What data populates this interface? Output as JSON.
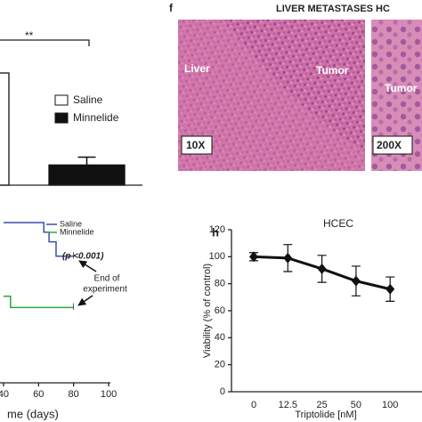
{
  "panel_f": {
    "label": "f",
    "title": "LIVER METASTASES HC",
    "image1_labels": [
      "Liver",
      "Tumor",
      "10X"
    ],
    "image2_labels": [
      "Tumor",
      "200X"
    ]
  },
  "chart_data": [
    {
      "type": "bar",
      "categories": [
        "Saline",
        "Minnelide"
      ],
      "values": [
        100,
        18
      ],
      "errors": [
        null,
        7
      ],
      "colors": [
        "#ffffff",
        "#111111"
      ],
      "ylim": [
        0,
        100
      ],
      "annotation": "**",
      "legend": true
    },
    {
      "type": "line",
      "xlabel": "me (days)",
      "xlim": [
        38,
        101
      ],
      "xticks": [
        40,
        60,
        80,
        100
      ],
      "ylim": [
        0,
        100
      ],
      "series": [
        {
          "name": "Saline",
          "color": "#3a4fb0",
          "x": [
            40,
            63,
            63,
            66,
            66,
            70,
            70,
            80
          ],
          "values": [
            100,
            100,
            94,
            94,
            88,
            88,
            79,
            79
          ]
        },
        {
          "name": "Minnelide",
          "color": "#2ea83a",
          "x": [
            40,
            44,
            44,
            80
          ],
          "values": [
            54,
            54,
            47,
            47
          ]
        }
      ],
      "annotations": [
        "(p <0.001)",
        "End of",
        "experiment"
      ]
    },
    {
      "type": "line",
      "panel": "h",
      "title": "HCEC",
      "xlabel": "Triptolide [nM]",
      "ylabel": "Viability (% of control)",
      "categories": [
        "0",
        "12.5",
        "25",
        "50",
        "100"
      ],
      "values": [
        100,
        99,
        91,
        82,
        76
      ],
      "errors": [
        3,
        10,
        10,
        11,
        9
      ],
      "color": "#111111",
      "ylim": [
        0,
        120
      ],
      "yticks": [
        0,
        20,
        40,
        60,
        80,
        100,
        120
      ]
    }
  ]
}
